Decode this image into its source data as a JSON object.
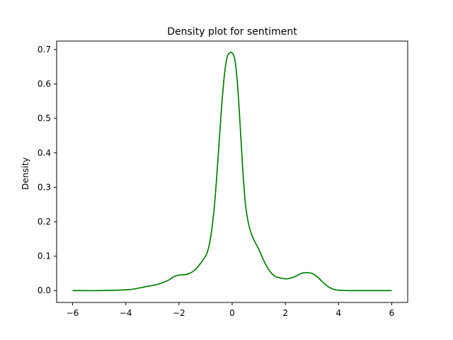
{
  "chart_data": {
    "type": "line",
    "title": "Density plot for sentiment",
    "xlabel": "",
    "ylabel": "Density",
    "xlim": [
      -6.6,
      6.6
    ],
    "ylim": [
      -0.0345,
      0.7245
    ],
    "xticks": [
      -6,
      -4,
      -2,
      0,
      2,
      4,
      6
    ],
    "yticks": [
      0.0,
      0.1,
      0.2,
      0.3,
      0.4,
      0.5,
      0.6,
      0.7
    ],
    "grid": false,
    "series": [
      {
        "name": "sentiment",
        "color": "#008000",
        "x": [
          -6.0,
          -5.0,
          -4.0,
          -3.6,
          -3.2,
          -2.8,
          -2.4,
          -2.2,
          -2.0,
          -1.8,
          -1.6,
          -1.4,
          -1.2,
          -1.0,
          -0.9,
          -0.8,
          -0.7,
          -0.6,
          -0.5,
          -0.4,
          -0.3,
          -0.2,
          -0.1,
          0.0,
          0.1,
          0.2,
          0.3,
          0.4,
          0.5,
          0.6,
          0.7,
          0.8,
          1.0,
          1.2,
          1.4,
          1.6,
          1.8,
          2.0,
          2.2,
          2.4,
          2.6,
          2.8,
          3.0,
          3.2,
          3.4,
          3.6,
          3.8,
          4.0,
          4.4,
          5.0,
          6.0
        ],
        "y": [
          0.0,
          0.0,
          0.002,
          0.006,
          0.012,
          0.018,
          0.03,
          0.04,
          0.045,
          0.046,
          0.05,
          0.06,
          0.078,
          0.1,
          0.12,
          0.16,
          0.22,
          0.31,
          0.42,
          0.53,
          0.62,
          0.675,
          0.69,
          0.69,
          0.67,
          0.6,
          0.48,
          0.35,
          0.25,
          0.2,
          0.17,
          0.15,
          0.12,
          0.085,
          0.058,
          0.042,
          0.037,
          0.034,
          0.036,
          0.042,
          0.05,
          0.052,
          0.05,
          0.04,
          0.025,
          0.012,
          0.004,
          0.001,
          0.0,
          0.0,
          0.0
        ]
      }
    ]
  }
}
